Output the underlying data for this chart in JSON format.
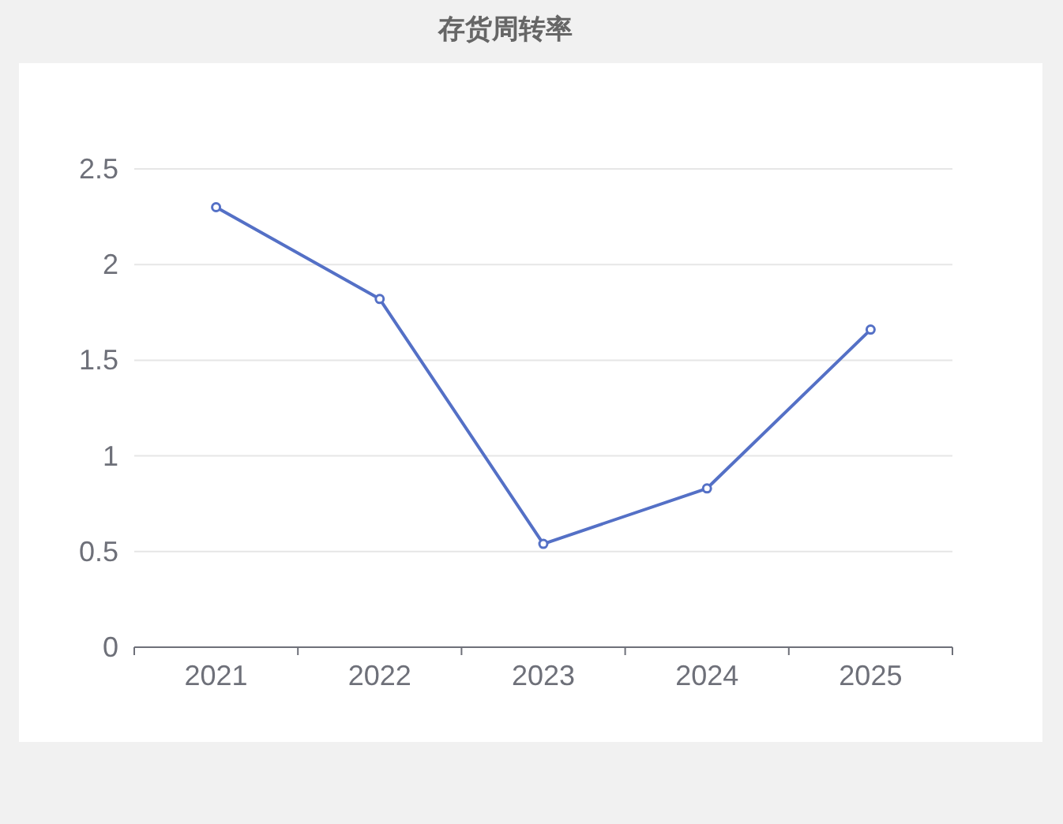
{
  "chart_data": {
    "type": "line",
    "title": "存货周转率",
    "categories": [
      "2021",
      "2022",
      "2023",
      "2024",
      "2025"
    ],
    "values": [
      2.3,
      1.82,
      0.54,
      0.83,
      1.66
    ],
    "color": "#5470c6",
    "ylim": [
      0,
      2.5
    ],
    "yticks": [
      0,
      0.5,
      1,
      1.5,
      2,
      2.5
    ],
    "grid": "y",
    "marker": "circle"
  }
}
